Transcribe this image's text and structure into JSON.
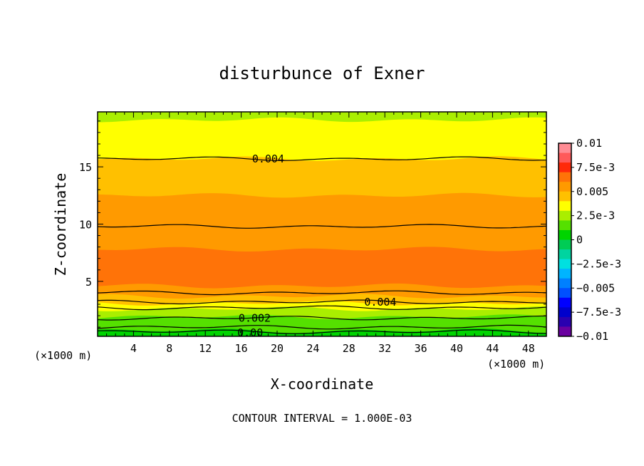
{
  "chart_data": {
    "type": "contour",
    "title": "disturbunce of Exner",
    "xlabel": "X-coordinate",
    "ylabel": "Z-coordinate",
    "x_unit": "(×1000 m)",
    "y_unit": "(×1000 m)",
    "xlim": [
      0,
      50
    ],
    "ylim": [
      0.2,
      19.8
    ],
    "x_ticks": [
      4,
      8,
      12,
      16,
      20,
      24,
      28,
      32,
      36,
      40,
      44,
      48
    ],
    "y_ticks": [
      5,
      10,
      15
    ],
    "footer": "CONTOUR INTERVAL = 1.000E-03",
    "colorbar": {
      "min": -0.01,
      "max": 0.01,
      "tick_labels": [
        "0.01",
        "7.5e-3",
        "0.005",
        "2.5e-3",
        "0",
        "−2.5e-3",
        "−0.005",
        "−7.5e-3",
        "−0.01"
      ],
      "tick_values": [
        0.01,
        0.0075,
        0.005,
        0.0025,
        0,
        -0.0025,
        -0.005,
        -0.0075,
        -0.01
      ],
      "bins": [
        {
          "from": 0.009,
          "to": 0.01,
          "color": "#ff8c94"
        },
        {
          "from": 0.008,
          "to": 0.009,
          "color": "#ff5a5a"
        },
        {
          "from": 0.007,
          "to": 0.008,
          "color": "#ff2a0a"
        },
        {
          "from": 0.006,
          "to": 0.007,
          "color": "#ff7308"
        },
        {
          "from": 0.005,
          "to": 0.006,
          "color": "#ff9a00"
        },
        {
          "from": 0.004,
          "to": 0.005,
          "color": "#ffc000"
        },
        {
          "from": 0.003,
          "to": 0.004,
          "color": "#ffff00"
        },
        {
          "from": 0.002,
          "to": 0.003,
          "color": "#aaee00"
        },
        {
          "from": 0.001,
          "to": 0.002,
          "color": "#55e000"
        },
        {
          "from": 0.0,
          "to": 0.001,
          "color": "#00d400"
        },
        {
          "from": -0.001,
          "to": 0.0,
          "color": "#00cc55"
        },
        {
          "from": -0.002,
          "to": -0.001,
          "color": "#00d4a0"
        },
        {
          "from": -0.003,
          "to": -0.002,
          "color": "#00e0e0"
        },
        {
          "from": -0.004,
          "to": -0.003,
          "color": "#00b4ff"
        },
        {
          "from": -0.005,
          "to": -0.004,
          "color": "#0080ff"
        },
        {
          "from": -0.006,
          "to": -0.005,
          "color": "#0050ff"
        },
        {
          "from": -0.007,
          "to": -0.006,
          "color": "#0000ff"
        },
        {
          "from": -0.008,
          "to": -0.007,
          "color": "#0000cc"
        },
        {
          "from": -0.009,
          "to": -0.008,
          "color": "#2a00b0"
        },
        {
          "from": -0.01,
          "to": -0.009,
          "color": "#6a00a0"
        }
      ]
    },
    "bands": [
      {
        "range": [
          0.002,
          0.003
        ],
        "color": "#aaee00",
        "z_top": 19.8
      },
      {
        "range": [
          0.003,
          0.004
        ],
        "color": "#ffff00",
        "z_top": 19.1
      },
      {
        "range": [
          0.004,
          0.005
        ],
        "color": "#ffc000",
        "z_top": 15.7
      },
      {
        "range": [
          0.005,
          0.006
        ],
        "color": "#ff9a00",
        "z_top": 12.5
      },
      {
        "range": [
          0.006,
          0.007
        ],
        "color": "#ff7308",
        "z_top": 7.8
      },
      {
        "range": [
          0.005,
          0.006
        ],
        "color": "#ff9a00",
        "z_top": 4.6
      },
      {
        "range": [
          0.004,
          0.005
        ],
        "color": "#ffc000",
        "z_top": 3.7
      },
      {
        "range": [
          0.003,
          0.004
        ],
        "color": "#ffff00",
        "z_top": 3.1
      },
      {
        "range": [
          0.002,
          0.003
        ],
        "color": "#aaee00",
        "z_top": 2.6
      },
      {
        "range": [
          0.001,
          0.002
        ],
        "color": "#55e000",
        "z_top": 1.9
      },
      {
        "range": [
          0.0,
          0.001
        ],
        "color": "#00d400",
        "z_top": 0.7
      }
    ],
    "contours": [
      {
        "level": 0.004,
        "z": 15.7
      },
      {
        "level": 0.005,
        "z": 9.8
      },
      {
        "level": 0.005,
        "z": 4.0
      },
      {
        "level": 0.004,
        "z": 3.2
      },
      {
        "level": 0.003,
        "z": 2.7
      },
      {
        "level": 0.002,
        "z": 1.8
      },
      {
        "level": 0.001,
        "z": 1.0
      },
      {
        "level": 0.0,
        "z": 0.6
      }
    ],
    "contour_labels": [
      {
        "text": "0.004",
        "x": 19.0,
        "z": 15.7
      },
      {
        "text": "0.004",
        "x": 31.5,
        "z": 3.2
      },
      {
        "text": "0.002",
        "x": 17.5,
        "z": 1.8
      },
      {
        "text": "0.00",
        "x": 17.0,
        "z": 0.5
      }
    ]
  }
}
